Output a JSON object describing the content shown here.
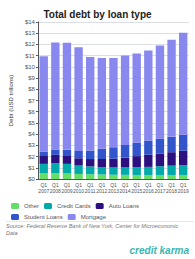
{
  "chart_data": {
    "type": "bar",
    "title": "Total debt by loan type",
    "stacked": true,
    "categories": [
      "Q1\n2007",
      "Q1\n2008",
      "Q1\n2009",
      "Q1\n2010",
      "Q1\n2011",
      "Q1\n2012",
      "Q1\n2013",
      "Q1\n2014",
      "Q1\n2015",
      "Q1\n2016",
      "Q1\n2017",
      "Q1\n2018",
      "Q1\n2019"
    ],
    "series": [
      {
        "name": "Other",
        "color": "#66dd66",
        "values": [
          0.5,
          0.5,
          0.5,
          0.45,
          0.42,
          0.4,
          0.38,
          0.37,
          0.36,
          0.36,
          0.36,
          0.36,
          0.36
        ]
      },
      {
        "name": "Credit Cards",
        "color": "#00aaaa",
        "values": [
          0.85,
          0.9,
          0.85,
          0.75,
          0.7,
          0.67,
          0.65,
          0.66,
          0.68,
          0.72,
          0.78,
          0.83,
          0.88
        ]
      },
      {
        "name": "Auto Loans",
        "color": "#2d1080",
        "values": [
          0.7,
          0.75,
          0.7,
          0.65,
          0.66,
          0.72,
          0.78,
          0.88,
          1.0,
          1.08,
          1.14,
          1.2,
          1.28
        ]
      },
      {
        "name": "Student Loans",
        "color": "#3355cc",
        "values": [
          0.4,
          0.48,
          0.55,
          0.65,
          0.76,
          0.9,
          1.02,
          1.12,
          1.2,
          1.27,
          1.32,
          1.37,
          1.42
        ]
      },
      {
        "name": "Mortgage",
        "color": "#8888ee",
        "values": [
          8.5,
          9.55,
          9.55,
          9.25,
          8.35,
          8.1,
          7.95,
          7.98,
          7.95,
          8.03,
          8.3,
          8.65,
          9.1
        ]
      }
    ],
    "ylabel": "Debt (USD trillions)",
    "ylim": [
      0,
      14
    ],
    "yticks": [
      {
        "value": 0,
        "label": "$0"
      },
      {
        "value": 1,
        "label": "$1"
      },
      {
        "value": 2,
        "label": "$2"
      },
      {
        "value": 3,
        "label": "$3"
      },
      {
        "value": 4,
        "label": "$4"
      },
      {
        "value": 5,
        "label": "$5"
      },
      {
        "value": 6,
        "label": "$6"
      },
      {
        "value": 7,
        "label": "$7"
      },
      {
        "value": 8,
        "label": "$8"
      },
      {
        "value": 9,
        "label": "$9"
      },
      {
        "value": 10,
        "label": "$10"
      },
      {
        "value": 11,
        "label": "$11"
      },
      {
        "value": 12,
        "label": "$12"
      },
      {
        "value": 13,
        "label": "$13"
      },
      {
        "value": 14,
        "label": "$14"
      }
    ],
    "grid": true,
    "legend": "bottom",
    "annotations": [
      {
        "text": "Source: Federal Reserve Bank of New York, Center for Microeconomic Data",
        "color": "#777777"
      },
      {
        "text": "credit karma",
        "color": "#3ab5b0"
      }
    ]
  }
}
